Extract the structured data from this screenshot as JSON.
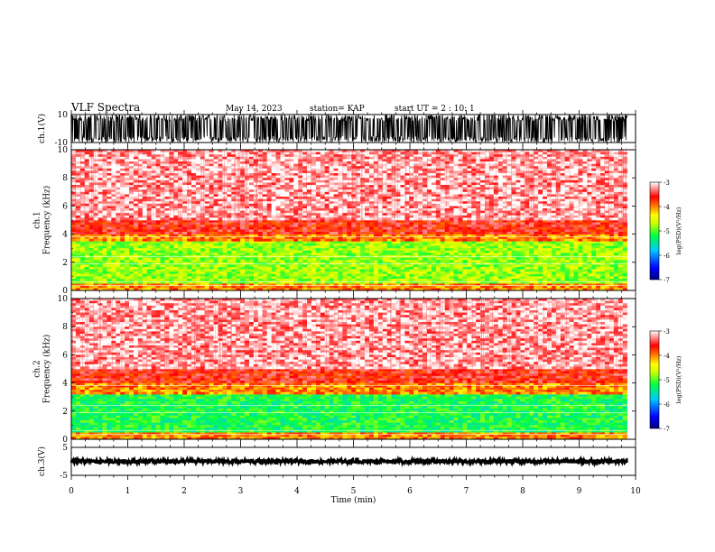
{
  "header": {
    "title": "VLF Spectra",
    "date": "May 14, 2023",
    "station": "station= KAP",
    "start_ut": "start UT =  2 : 10: 1"
  },
  "chart_data": [
    {
      "type": "line",
      "panel": "waveform-ch1",
      "ylabel": "ch.1(V)",
      "ylim": [
        -10,
        10
      ],
      "ytick_labels": [
        "10",
        "-10"
      ],
      "x_range_min": [
        0,
        9.85
      ],
      "note_amplitude_range": [
        -10,
        10
      ],
      "color": "#000000"
    },
    {
      "type": "heatmap",
      "panel": "spectrogram-ch1",
      "ylabel": "ch.1 Frequency (kHz)",
      "ylim": [
        0,
        10
      ],
      "ytick_labels": [
        "0",
        "2",
        "4",
        "6",
        "8",
        "10"
      ],
      "x_range_min": [
        0,
        9.85
      ],
      "bands_khz": [
        {
          "from": 0,
          "to": 0.5,
          "level": -4.0
        },
        {
          "from": 0.5,
          "to": 3.5,
          "level": -4.8
        },
        {
          "from": 3.5,
          "to": 4.0,
          "level": -4.0
        },
        {
          "from": 4.0,
          "to": 5.0,
          "level": -3.6
        },
        {
          "from": 5.0,
          "to": 10.0,
          "level": -3.2
        }
      ],
      "colorbar": {
        "label": "log(PSD)(V²/Hz)",
        "range": [
          -7,
          -3
        ],
        "tick_labels": [
          "-3",
          "-4",
          "-5",
          "-6",
          "-7"
        ]
      }
    },
    {
      "type": "heatmap",
      "panel": "spectrogram-ch2",
      "ylabel": "ch.2 Frequency (kHz)",
      "ylim": [
        0,
        10
      ],
      "ytick_labels": [
        "0",
        "2",
        "4",
        "6",
        "8",
        "10"
      ],
      "x_range_min": [
        0,
        9.85
      ],
      "bands_khz": [
        {
          "from": 0,
          "to": 0.5,
          "level": -4.0
        },
        {
          "from": 0.5,
          "to": 3.2,
          "level": -5.2
        },
        {
          "from": 3.2,
          "to": 4.0,
          "level": -4.0
        },
        {
          "from": 4.0,
          "to": 5.0,
          "level": -3.6
        },
        {
          "from": 5.0,
          "to": 10.0,
          "level": -3.2
        }
      ],
      "colorbar": {
        "label": "log(PSD)(V²/Hz)",
        "range": [
          -7,
          -3
        ],
        "tick_labels": [
          "-3",
          "-4",
          "-5",
          "-6",
          "-7"
        ]
      }
    },
    {
      "type": "line",
      "panel": "waveform-ch3",
      "ylabel": "ch.3(V)",
      "ylim": [
        -5,
        5
      ],
      "ytick_labels": [
        "5",
        "-5"
      ],
      "x_range_min": [
        0,
        9.85
      ],
      "note_amplitude_range": [
        -0.7,
        0.7
      ],
      "color": "#000000"
    }
  ],
  "xaxis": {
    "label": "Time (min)",
    "range": [
      0,
      10
    ],
    "tick_labels": [
      "0",
      "1",
      "2",
      "3",
      "4",
      "5",
      "6",
      "7",
      "8",
      "9",
      "10"
    ]
  },
  "colors": {
    "waveform": "#000000",
    "spectrogram_background": "#ffffff",
    "colormap": [
      "#000080",
      "#0000ff",
      "#00c0ff",
      "#00ff40",
      "#c8ff00",
      "#ffff00",
      "#ff8000",
      "#ff0000",
      "#ffffff"
    ]
  }
}
